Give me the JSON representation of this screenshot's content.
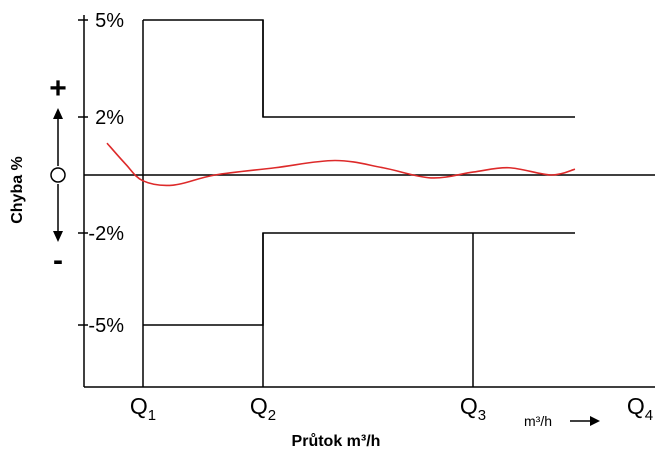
{
  "chart_data": {
    "type": "line",
    "xlabel": "Průtok m³/h",
    "ylabel": "Chyba %",
    "x_unit_label": "m³/h",
    "x_ticks": [
      {
        "main": "Q",
        "sub": "1"
      },
      {
        "main": "Q",
        "sub": "2"
      },
      {
        "main": "Q",
        "sub": "3"
      },
      {
        "main": "Q",
        "sub": "4"
      }
    ],
    "y_ticks": [
      "5%",
      "2%",
      "-2%",
      "-5%"
    ],
    "y_tick_values": [
      5,
      2,
      -2,
      -5
    ],
    "y_markers": {
      "plus": "+",
      "minus": "-"
    },
    "ylim": [
      -7.2,
      5.5
    ],
    "x_positions": {
      "Q1": 1,
      "Q2": 2,
      "Q3": 3.75,
      "Q4": 4.6
    },
    "xlim": [
      0.5,
      4.6
    ],
    "series": [
      {
        "type": "envelope",
        "color": "#000000",
        "upper": [
          [
            1,
            5
          ],
          [
            2,
            5
          ],
          [
            2,
            2
          ],
          [
            4.6,
            2
          ]
        ],
        "lower": [
          [
            1,
            -5
          ],
          [
            2,
            -5
          ],
          [
            2,
            -2
          ],
          [
            4.6,
            -2
          ]
        ],
        "dividers_x": [
          1,
          2,
          3.75
        ]
      },
      {
        "type": "error-curve",
        "color": "#dd2a2a",
        "points": [
          [
            0.7,
            1.1
          ],
          [
            0.85,
            0.4
          ],
          [
            1.0,
            -0.2
          ],
          [
            1.25,
            -0.35
          ],
          [
            1.6,
            0.0
          ],
          [
            2.1,
            0.25
          ],
          [
            2.6,
            0.5
          ],
          [
            3.0,
            0.25
          ],
          [
            3.4,
            -0.1
          ],
          [
            3.75,
            0.1
          ],
          [
            4.05,
            0.25
          ],
          [
            4.4,
            0.0
          ],
          [
            4.6,
            0.2
          ]
        ]
      }
    ],
    "zero_line": true,
    "grid": false,
    "legend": "none"
  }
}
